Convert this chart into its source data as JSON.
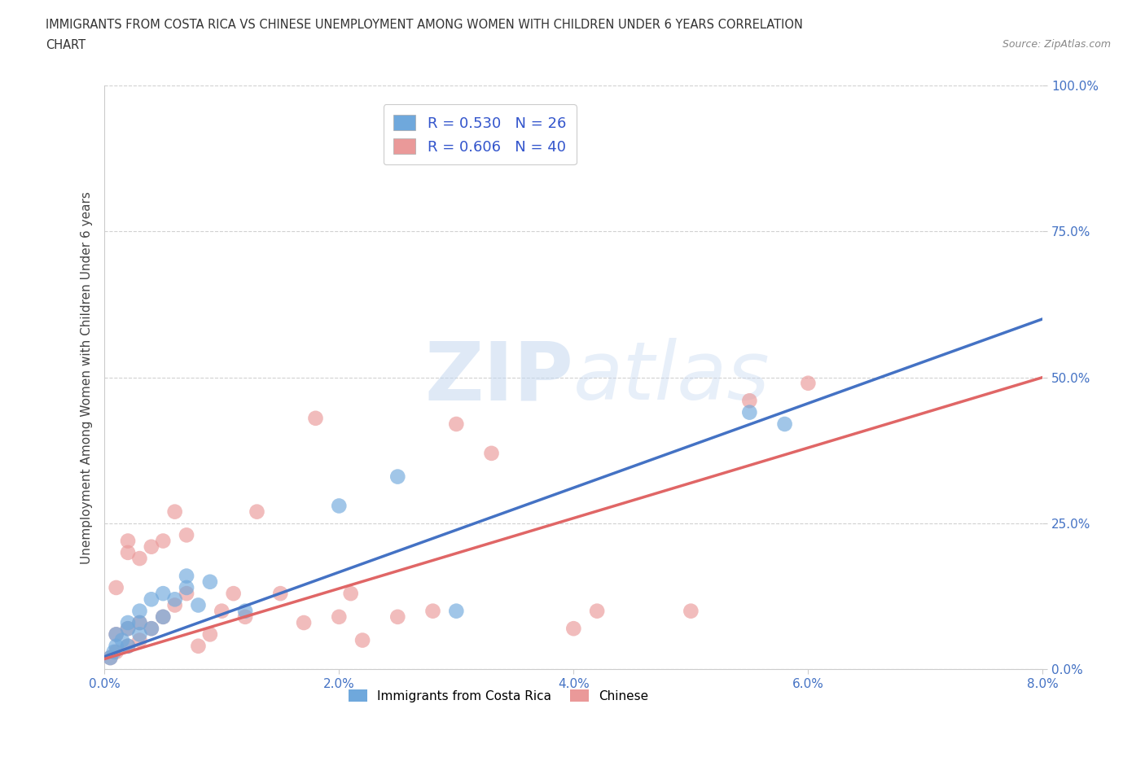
{
  "title_line1": "IMMIGRANTS FROM COSTA RICA VS CHINESE UNEMPLOYMENT AMONG WOMEN WITH CHILDREN UNDER 6 YEARS CORRELATION",
  "title_line2": "CHART",
  "source_text": "Source: ZipAtlas.com",
  "ylabel": "Unemployment Among Women with Children Under 6 years",
  "xmin": 0.0,
  "xmax": 0.08,
  "ymin": 0.0,
  "ymax": 1.0,
  "xticks": [
    0.0,
    0.02,
    0.04,
    0.06,
    0.08
  ],
  "xticklabels": [
    "0.0%",
    "2.0%",
    "4.0%",
    "6.0%",
    "8.0%"
  ],
  "yticks": [
    0.0,
    0.25,
    0.5,
    0.75,
    1.0
  ],
  "yticklabels": [
    "0.0%",
    "25.0%",
    "50.0%",
    "75.0%",
    "100.0%"
  ],
  "costa_rica_color": "#6fa8dc",
  "chinese_color": "#ea9999",
  "trendline_costa_rica_color": "#4472c4",
  "trendline_chinese_color": "#e06666",
  "legend_r_costa_rica": "R = 0.530",
  "legend_n_costa_rica": "N = 26",
  "legend_r_chinese": "R = 0.606",
  "legend_n_chinese": "N = 40",
  "legend_label_costa_rica": "Immigrants from Costa Rica",
  "legend_label_chinese": "Chinese",
  "watermark_zip": "ZIP",
  "watermark_atlas": "atlas",
  "background_color": "#ffffff",
  "grid_color": "#cccccc",
  "costa_rica_x": [
    0.0005,
    0.0008,
    0.001,
    0.001,
    0.0015,
    0.002,
    0.002,
    0.002,
    0.003,
    0.003,
    0.003,
    0.004,
    0.004,
    0.005,
    0.005,
    0.006,
    0.007,
    0.007,
    0.008,
    0.009,
    0.012,
    0.02,
    0.025,
    0.03,
    0.055,
    0.058
  ],
  "costa_rica_y": [
    0.02,
    0.03,
    0.04,
    0.06,
    0.05,
    0.04,
    0.07,
    0.08,
    0.06,
    0.08,
    0.1,
    0.07,
    0.12,
    0.09,
    0.13,
    0.12,
    0.14,
    0.16,
    0.11,
    0.15,
    0.1,
    0.28,
    0.33,
    0.1,
    0.44,
    0.42
  ],
  "chinese_x": [
    0.0005,
    0.001,
    0.001,
    0.001,
    0.002,
    0.002,
    0.002,
    0.002,
    0.003,
    0.003,
    0.003,
    0.004,
    0.004,
    0.005,
    0.005,
    0.006,
    0.006,
    0.007,
    0.007,
    0.008,
    0.009,
    0.01,
    0.011,
    0.012,
    0.013,
    0.015,
    0.017,
    0.018,
    0.02,
    0.021,
    0.022,
    0.025,
    0.028,
    0.03,
    0.033,
    0.04,
    0.042,
    0.05,
    0.055,
    0.06
  ],
  "chinese_y": [
    0.02,
    0.03,
    0.06,
    0.14,
    0.04,
    0.07,
    0.2,
    0.22,
    0.05,
    0.08,
    0.19,
    0.07,
    0.21,
    0.09,
    0.22,
    0.11,
    0.27,
    0.13,
    0.23,
    0.04,
    0.06,
    0.1,
    0.13,
    0.09,
    0.27,
    0.13,
    0.08,
    0.43,
    0.09,
    0.13,
    0.05,
    0.09,
    0.1,
    0.42,
    0.37,
    0.07,
    0.1,
    0.1,
    0.46,
    0.49
  ],
  "trendline_cr_x0": 0.0,
  "trendline_cr_y0": 0.022,
  "trendline_cr_x1": 0.08,
  "trendline_cr_y1": 0.6,
  "trendline_ch_x0": 0.0,
  "trendline_ch_y0": 0.018,
  "trendline_ch_x1": 0.08,
  "trendline_ch_y1": 0.5
}
